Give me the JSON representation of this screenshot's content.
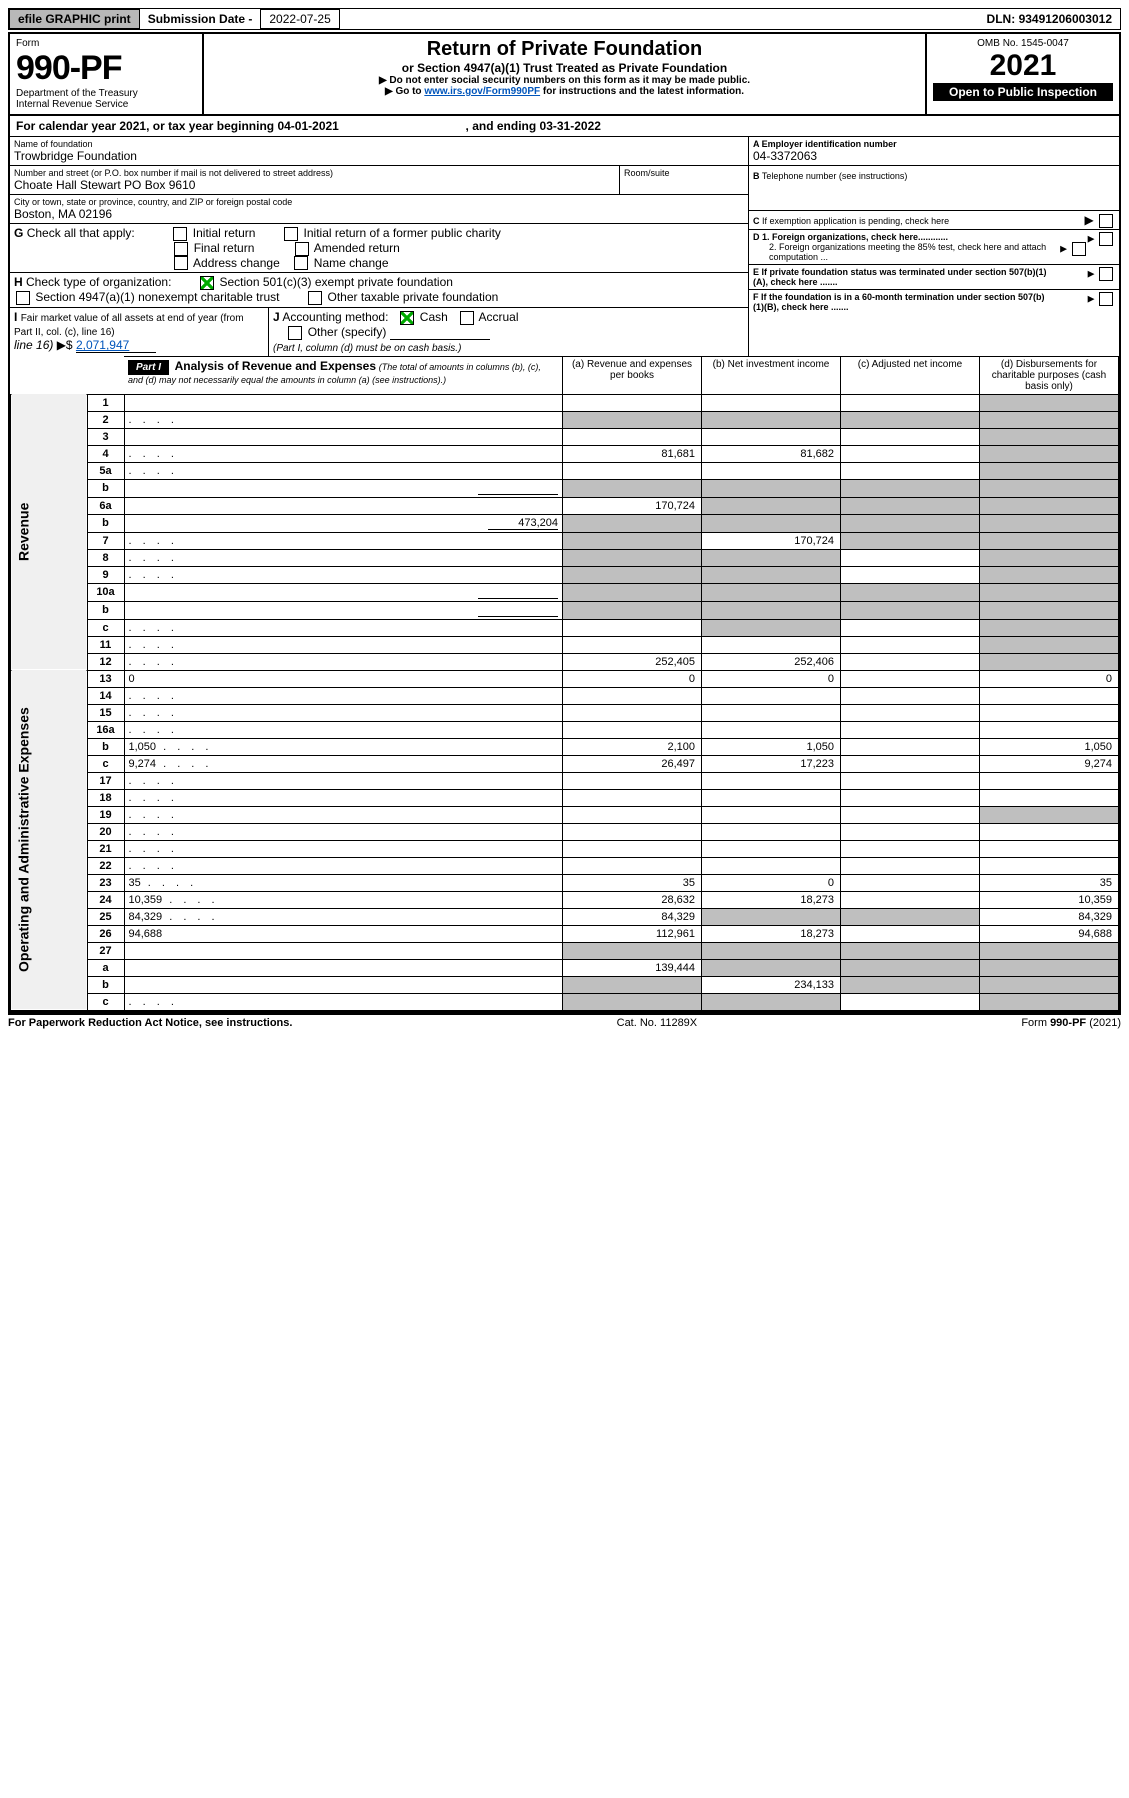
{
  "header": {
    "efile_btn": "efile GRAPHIC print",
    "submission_label": "Submission Date -",
    "submission_date": "2022-07-25",
    "dln_label": "DLN:",
    "dln": "93491206003012"
  },
  "title_block": {
    "form_label": "Form",
    "form_number": "990-PF",
    "dept": "Department of the Treasury",
    "irs": "Internal Revenue Service",
    "main_title": "Return of Private Foundation",
    "sub_title": "or Section 4947(a)(1) Trust Treated as Private Foundation",
    "note1": "▶ Do not enter social security numbers on this form as it may be made public.",
    "note2_pre": "▶ Go to ",
    "note2_link": "www.irs.gov/Form990PF",
    "note2_post": " for instructions and the latest information.",
    "omb": "OMB No. 1545-0047",
    "year": "2021",
    "open": "Open to Public Inspection"
  },
  "cal_year": {
    "text_a": "For calendar year 2021, or tax year beginning ",
    "begin": "04-01-2021",
    "text_b": " , and ending ",
    "end": "03-31-2022"
  },
  "id_block": {
    "name_label": "Name of foundation",
    "name": "Trowbridge Foundation",
    "addr_label": "Number and street (or P.O. box number if mail is not delivered to street address)",
    "addr": "Choate Hall Stewart PO Box 9610",
    "room_label": "Room/suite",
    "city_label": "City or town, state or province, country, and ZIP or foreign postal code",
    "city": "Boston, MA  02196",
    "a_label": "A Employer identification number",
    "ein": "04-3372063",
    "b_label": "B",
    "b_text": "Telephone number (see instructions)",
    "c_label": "C",
    "c_text": "If exemption application is pending, check here",
    "d1": "D 1. Foreign organizations, check here............",
    "d2": "2. Foreign organizations meeting the 85% test, check here and attach computation ...",
    "e": "E   If private foundation status was terminated under section 507(b)(1)(A), check here .......",
    "f": "F   If the foundation is in a 60-month termination under section 507(b)(1)(B), check here .......",
    "g_label": "G",
    "g_text": "Check all that apply:",
    "g_opts": [
      "Initial return",
      "Initial return of a former public charity",
      "Final return",
      "Amended return",
      "Address change",
      "Name change"
    ],
    "h_label": "H",
    "h_text": "Check type of organization:",
    "h_opts": [
      "Section 501(c)(3) exempt private foundation",
      "Section 4947(a)(1) nonexempt charitable trust",
      "Other taxable private foundation"
    ],
    "i_label": "I",
    "i_text": "Fair market value of all assets at end of year (from Part II, col. (c), line 16)",
    "i_val": "2,071,947",
    "j_label": "J",
    "j_text": "Accounting method:",
    "j_cash": "Cash",
    "j_accrual": "Accrual",
    "j_other": "Other (specify)",
    "j_note": "(Part I, column (d) must be on cash basis.)"
  },
  "part1": {
    "label": "Part I",
    "title": "Analysis of Revenue and Expenses",
    "note": "(The total of amounts in columns (b), (c), and (d) may not necessarily equal the amounts in column (a) (see instructions).)",
    "col_a": "(a)   Revenue and expenses per books",
    "col_b": "(b)   Net investment income",
    "col_c": "(c)   Adjusted net income",
    "col_d": "(d)   Disbursements for charitable purposes (cash basis only)"
  },
  "sections": {
    "revenue": "Revenue",
    "expenses": "Operating and Administrative Expenses"
  },
  "lines": [
    {
      "n": "1",
      "d": "",
      "a": "",
      "b": "",
      "c": "",
      "shade_d": true
    },
    {
      "n": "2",
      "d": "",
      "a": "",
      "b": "",
      "c": "",
      "shade_a": true,
      "shade_b": true,
      "shade_c": true,
      "shade_d": true,
      "dots": true
    },
    {
      "n": "3",
      "d": "",
      "a": "",
      "b": "",
      "c": "",
      "shade_d": true
    },
    {
      "n": "4",
      "d": "",
      "a": "81,681",
      "b": "81,682",
      "c": "",
      "shade_d": true,
      "dots": true
    },
    {
      "n": "5a",
      "d": "",
      "a": "",
      "b": "",
      "c": "",
      "shade_d": true,
      "dots": true
    },
    {
      "n": "b",
      "d": "",
      "a": "",
      "b": "",
      "c": "",
      "shade_a": true,
      "shade_b": true,
      "shade_c": true,
      "shade_d": true,
      "inline": true
    },
    {
      "n": "6a",
      "d": "",
      "a": "170,724",
      "b": "",
      "c": "",
      "shade_b": true,
      "shade_c": true,
      "shade_d": true
    },
    {
      "n": "b",
      "d": "",
      "a": "",
      "b": "",
      "c": "",
      "shade_a": true,
      "shade_b": true,
      "shade_c": true,
      "shade_d": true,
      "inline_val": "473,204"
    },
    {
      "n": "7",
      "d": "",
      "a": "",
      "b": "170,724",
      "c": "",
      "shade_a": true,
      "shade_c": true,
      "shade_d": true,
      "dots": true
    },
    {
      "n": "8",
      "d": "",
      "a": "",
      "b": "",
      "c": "",
      "shade_a": true,
      "shade_b": true,
      "shade_d": true,
      "dots": true
    },
    {
      "n": "9",
      "d": "",
      "a": "",
      "b": "",
      "c": "",
      "shade_a": true,
      "shade_b": true,
      "shade_d": true,
      "dots": true
    },
    {
      "n": "10a",
      "d": "",
      "a": "",
      "b": "",
      "c": "",
      "shade_a": true,
      "shade_b": true,
      "shade_c": true,
      "shade_d": true,
      "inline": true
    },
    {
      "n": "b",
      "d": "",
      "a": "",
      "b": "",
      "c": "",
      "shade_a": true,
      "shade_b": true,
      "shade_c": true,
      "shade_d": true,
      "inline": true,
      "dots": true
    },
    {
      "n": "c",
      "d": "",
      "a": "",
      "b": "",
      "c": "",
      "shade_b": true,
      "shade_d": true,
      "dots": true
    },
    {
      "n": "11",
      "d": "",
      "a": "",
      "b": "",
      "c": "",
      "shade_d": true,
      "dots": true
    },
    {
      "n": "12",
      "d": "",
      "a": "252,405",
      "b": "252,406",
      "c": "",
      "shade_d": true,
      "dots": true
    },
    {
      "n": "13",
      "d": "0",
      "a": "0",
      "b": "0",
      "c": ""
    },
    {
      "n": "14",
      "d": "",
      "a": "",
      "b": "",
      "c": "",
      "dots": true
    },
    {
      "n": "15",
      "d": "",
      "a": "",
      "b": "",
      "c": "",
      "dots": true
    },
    {
      "n": "16a",
      "d": "",
      "a": "",
      "b": "",
      "c": "",
      "dots": true
    },
    {
      "n": "b",
      "d": "1,050",
      "a": "2,100",
      "b": "1,050",
      "c": "",
      "dots": true
    },
    {
      "n": "c",
      "d": "9,274",
      "a": "26,497",
      "b": "17,223",
      "c": "",
      "dots": true
    },
    {
      "n": "17",
      "d": "",
      "a": "",
      "b": "",
      "c": "",
      "dots": true
    },
    {
      "n": "18",
      "d": "",
      "a": "",
      "b": "",
      "c": "",
      "dots": true
    },
    {
      "n": "19",
      "d": "",
      "a": "",
      "b": "",
      "c": "",
      "shade_d": true,
      "dots": true
    },
    {
      "n": "20",
      "d": "",
      "a": "",
      "b": "",
      "c": "",
      "dots": true
    },
    {
      "n": "21",
      "d": "",
      "a": "",
      "b": "",
      "c": "",
      "dots": true
    },
    {
      "n": "22",
      "d": "",
      "a": "",
      "b": "",
      "c": "",
      "dots": true
    },
    {
      "n": "23",
      "d": "35",
      "a": "35",
      "b": "0",
      "c": "",
      "dots": true
    },
    {
      "n": "24",
      "d": "10,359",
      "a": "28,632",
      "b": "18,273",
      "c": "",
      "dots": true
    },
    {
      "n": "25",
      "d": "84,329",
      "a": "84,329",
      "b": "",
      "c": "",
      "shade_b": true,
      "shade_c": true,
      "dots": true
    },
    {
      "n": "26",
      "d": "94,688",
      "a": "112,961",
      "b": "18,273",
      "c": ""
    },
    {
      "n": "27",
      "d": "",
      "a": "",
      "b": "",
      "c": "",
      "shade_a": true,
      "shade_b": true,
      "shade_c": true,
      "shade_d": true
    },
    {
      "n": "a",
      "d": "",
      "a": "139,444",
      "b": "",
      "c": "",
      "shade_b": true,
      "shade_c": true,
      "shade_d": true
    },
    {
      "n": "b",
      "d": "",
      "a": "",
      "b": "234,133",
      "c": "",
      "shade_a": true,
      "shade_c": true,
      "shade_d": true
    },
    {
      "n": "c",
      "d": "",
      "a": "",
      "b": "",
      "c": "",
      "shade_a": true,
      "shade_b": true,
      "shade_d": true,
      "dots": true
    }
  ],
  "footer": {
    "left": "For Paperwork Reduction Act Notice, see instructions.",
    "center": "Cat. No. 11289X",
    "right": "Form 990-PF (2021)"
  }
}
